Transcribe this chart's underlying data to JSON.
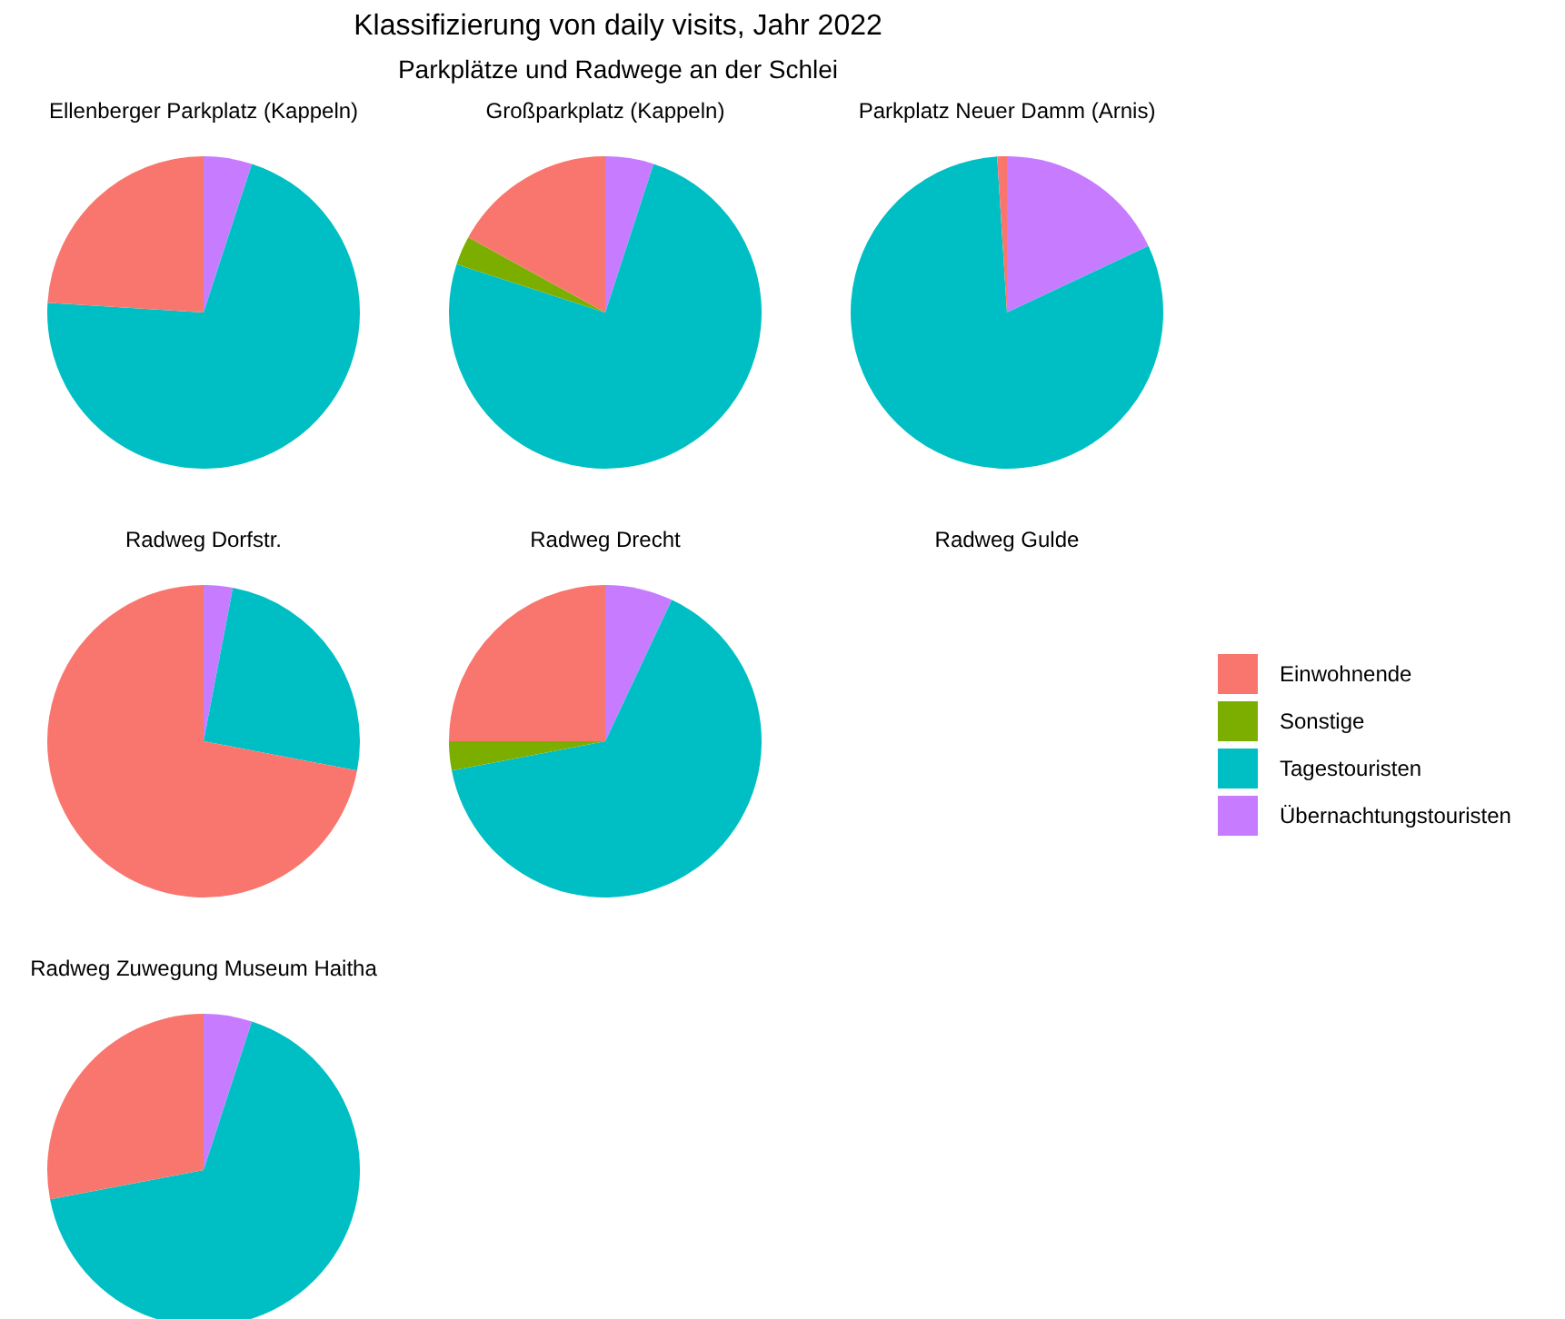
{
  "chart_data": [
    {
      "type": "other",
      "title": "Klassifizierung von daily visits, Jahr 2022",
      "subtitle": "Parkplätze und Radwege an der Schlei"
    },
    {
      "type": "pie",
      "title": "Ellenberger Parkplatz (Kappeln)",
      "categories": [
        "Einwohnende",
        "Sonstige",
        "Tagestouristen",
        "Übernachtungstouristen"
      ],
      "values": [
        24,
        0,
        71,
        5
      ],
      "colors": [
        "#f8766d",
        "#7cae00",
        "#00bfc4",
        "#c77cff"
      ],
      "legend": "right"
    },
    {
      "type": "pie",
      "title": "Großparkplatz (Kappeln)",
      "categories": [
        null,
        null,
        null,
        null
      ],
      "values": [
        17,
        3,
        75,
        5
      ],
      "colors": [
        "#f8766d",
        "#7cae00",
        "#00bfc4",
        "#c77cff"
      ]
    },
    {
      "type": "pie",
      "title": "Parkplatz Neuer Damm (Arnis)",
      "categories": [
        null,
        null,
        null,
        null
      ],
      "values": [
        1,
        0,
        81,
        18
      ],
      "colors": [
        "#f8766d",
        "#7cae00",
        "#00bfc4",
        "#c77cff"
      ]
    },
    {
      "type": "pie",
      "title": "Radweg Dorfstr.",
      "categories": [
        null,
        null,
        null,
        null
      ],
      "values": [
        72,
        0,
        25,
        3
      ],
      "colors": [
        "#f8766d",
        "#7cae00",
        "#00bfc4",
        "#c77cff"
      ]
    },
    {
      "type": "pie",
      "title": "Radweg Drecht",
      "categories": [
        null,
        null,
        null,
        null
      ],
      "values": [
        25,
        3,
        65,
        7
      ],
      "colors": [
        "#f8766d",
        "#7cae00",
        "#00bfc4",
        "#c77cff"
      ]
    },
    {
      "type": "other",
      "title": "Radweg Gulde"
    },
    {
      "type": "pie",
      "title": "Radweg Zuwegung Museum Haitha",
      "categories": [
        null,
        null,
        null,
        null
      ],
      "values": [
        28,
        0,
        67,
        5
      ],
      "colors": [
        "#f8766d",
        "#7cae00",
        "#00bfc4",
        "#c77cff"
      ]
    }
  ]
}
